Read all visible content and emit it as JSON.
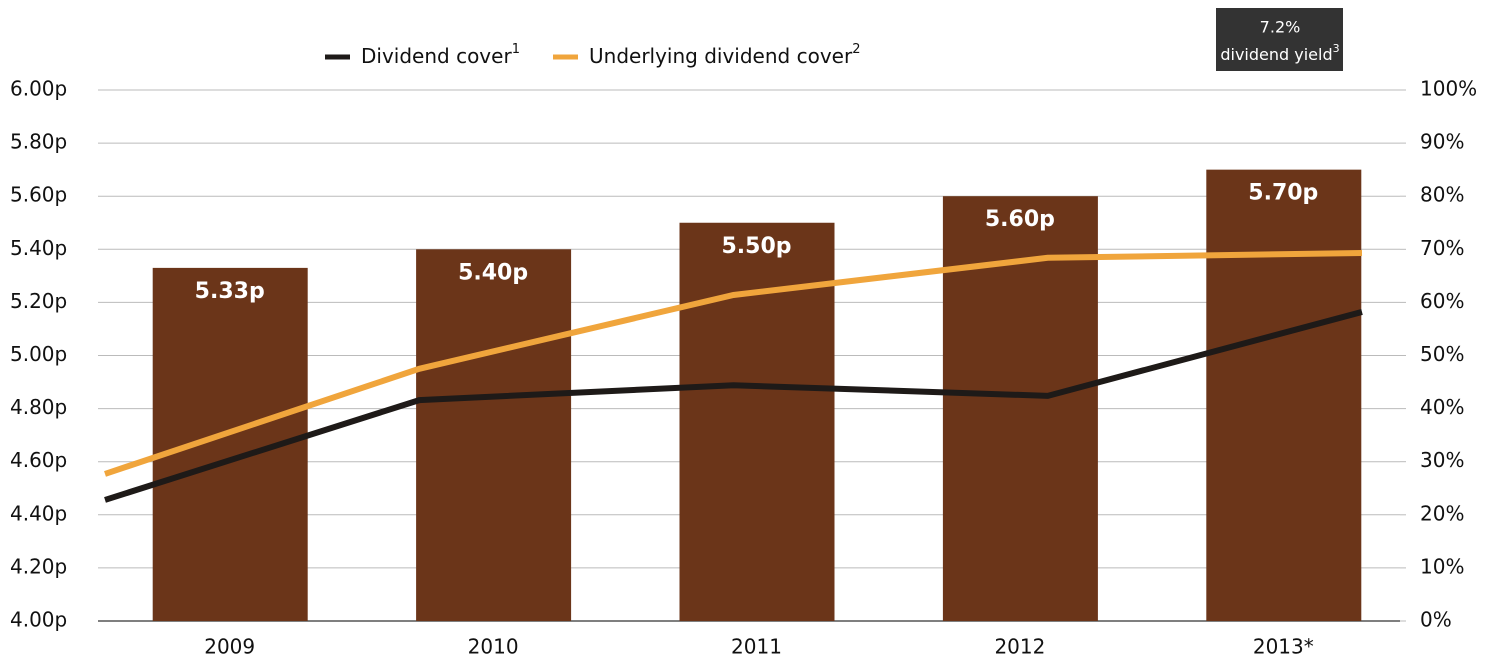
{
  "chart_data": {
    "type": "bar",
    "categories": [
      "2009",
      "2010",
      "2011",
      "2012",
      "2013*"
    ],
    "values": [
      5.33,
      5.4,
      5.5,
      5.6,
      5.7
    ],
    "value_labels": [
      "5.33p",
      "5.40p",
      "5.50p",
      "5.60p",
      "5.70p"
    ],
    "color": "#6b3519",
    "ylim": [
      4,
      6
    ],
    "yticks": [
      {
        "value": 4,
        "label": "4.00p"
      },
      {
        "value": 4.2,
        "label": "4.20p"
      },
      {
        "value": 4.4,
        "label": "4.40p"
      },
      {
        "value": 4.6,
        "label": "4.60p"
      },
      {
        "value": 4.8,
        "label": "4.80p"
      },
      {
        "value": 5,
        "label": "5.00p"
      },
      {
        "value": 5.2,
        "label": "5.20p"
      },
      {
        "value": 5.4,
        "label": "5.40p"
      },
      {
        "value": 5.6,
        "label": "5.60p"
      },
      {
        "value": 5.8,
        "label": "5.80p"
      },
      {
        "value": 6,
        "label": "6.00p"
      }
    ],
    "y2lim": [
      0,
      100
    ],
    "y2ticks": [
      {
        "value": 0,
        "label": "0%"
      },
      {
        "value": 10,
        "label": "10%"
      },
      {
        "value": 20,
        "label": "20%"
      },
      {
        "value": 30,
        "label": "30%"
      },
      {
        "value": 40,
        "label": "40%"
      },
      {
        "value": 50,
        "label": "50%"
      },
      {
        "value": 60,
        "label": "60%"
      },
      {
        "value": 70,
        "label": "70%"
      },
      {
        "value": 80,
        "label": "80%"
      },
      {
        "value": 90,
        "label": "90%"
      },
      {
        "value": 100,
        "label": "100%"
      }
    ],
    "grid": true,
    "series": [
      {
        "name": "Dividend cover",
        "footnote": "1",
        "color": "#1e1a18",
        "axis": "y2",
        "values": [
          22.8,
          41.6,
          44.4,
          42.4,
          58.2
        ]
      },
      {
        "name": "Underlying dividend cover",
        "footnote": "2",
        "color": "#f0a53c",
        "axis": "y2",
        "values": [
          27.7,
          47.5,
          61.4,
          68.4,
          69.3
        ]
      }
    ],
    "annotation": {
      "line1": "7.2%",
      "line2": "dividend yield",
      "footnote": "3"
    }
  }
}
